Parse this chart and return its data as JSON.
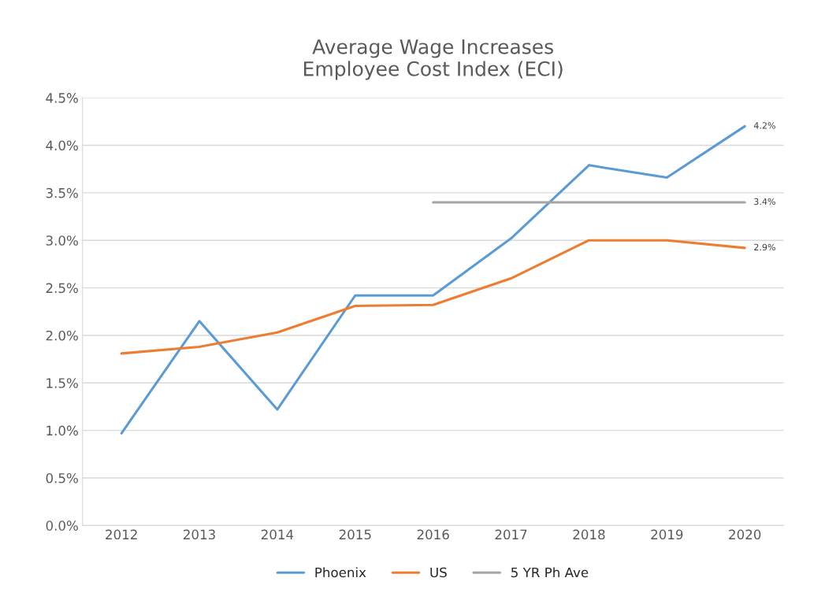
{
  "chart_data": {
    "type": "line",
    "title": "Average Wage Increases\nEmployee Cost Index (ECI)",
    "categories": [
      "2012",
      "2013",
      "2014",
      "2015",
      "2016",
      "2017",
      "2018",
      "2019",
      "2020"
    ],
    "series": [
      {
        "name": "Phoenix",
        "color": "#5b9bd5",
        "values": [
          0.97,
          2.15,
          1.22,
          2.42,
          2.42,
          3.02,
          3.79,
          3.66,
          4.2
        ],
        "value_labels": [
          null,
          null,
          null,
          null,
          null,
          null,
          null,
          null,
          "4.2%"
        ]
      },
      {
        "name": "US",
        "color": "#ed7d31",
        "values": [
          1.81,
          1.88,
          2.03,
          2.31,
          2.32,
          2.6,
          3.0,
          3.0,
          2.92
        ],
        "value_labels": [
          null,
          null,
          null,
          null,
          null,
          null,
          null,
          null,
          "2.9%"
        ]
      },
      {
        "name": "5 YR Ph Ave",
        "color": "#a5a5a5",
        "values": [
          null,
          null,
          null,
          null,
          3.4,
          3.4,
          3.4,
          3.4,
          3.4
        ],
        "value_labels": [
          null,
          null,
          null,
          null,
          null,
          null,
          null,
          null,
          "3.4%"
        ]
      }
    ],
    "ylim": [
      0,
      4.5
    ],
    "yticks": [
      {
        "value": 0,
        "label": "0.0%"
      },
      {
        "value": 0.5,
        "label": "0.5%"
      },
      {
        "value": 1,
        "label": "1.0%"
      },
      {
        "value": 1.5,
        "label": "1.5%"
      },
      {
        "value": 2,
        "label": "2.0%"
      },
      {
        "value": 2.5,
        "label": "2.5%"
      },
      {
        "value": 3,
        "label": "3.0%"
      },
      {
        "value": 3.5,
        "label": "3.5%"
      },
      {
        "value": 4,
        "label": "4.0%"
      },
      {
        "value": 4.5,
        "label": "4.5%"
      }
    ],
    "grid": "y",
    "legend": "bottom",
    "marker": "none",
    "line_style": "solid"
  }
}
